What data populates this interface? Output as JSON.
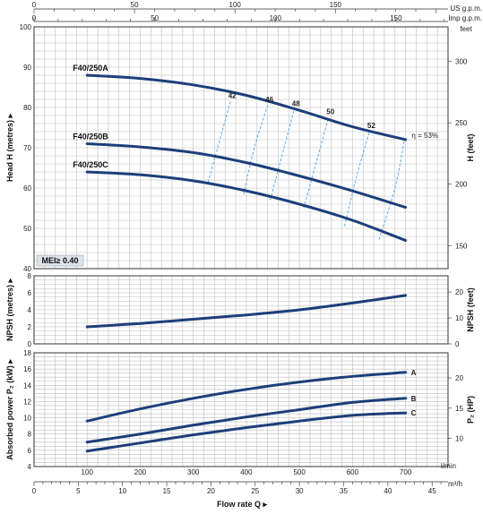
{
  "colors": {
    "curve": "#1c3f7a",
    "efficiency": "#5fa8df",
    "mei_box": "#dde3ea",
    "grid": "#bdbdbd"
  },
  "top_axes": {
    "us_label": "US g.p.m.",
    "us_ticks": [
      0,
      50,
      100,
      150
    ],
    "imp_label": "Imp g.p.m.",
    "imp_ticks": [
      0,
      50,
      100,
      150
    ]
  },
  "bottom_axes": {
    "lmin_label": "l/min",
    "lmin_ticks": [
      100,
      200,
      300,
      400,
      500,
      600,
      700
    ],
    "m3h_label": "m³/h",
    "m3h_ticks": [
      0,
      5,
      10,
      15,
      20,
      25,
      30,
      35,
      40,
      45
    ],
    "xlabel": "Flow rate Q"
  },
  "mei_label": "MEI≥ 0.40",
  "chart_data": [
    {
      "type": "line",
      "ylabel": "Head H (metres)",
      "ylabel_right": "H (feet)",
      "ylim": [
        40,
        100
      ],
      "y_ticks": [
        40,
        50,
        60,
        70,
        80,
        90,
        100
      ],
      "right_ticks": [
        150,
        200,
        250,
        300
      ],
      "right_unit_label": "feet",
      "xlim": [
        0,
        780
      ],
      "grid": true,
      "series": [
        {
          "name": "F40/250A",
          "x": [
            100,
            200,
            300,
            400,
            500,
            600,
            700
          ],
          "y": [
            88,
            87.2,
            85.6,
            83,
            79.3,
            75.2,
            72
          ]
        },
        {
          "name": "F40/250B",
          "x": [
            100,
            200,
            300,
            400,
            500,
            600,
            700
          ],
          "y": [
            71,
            70.2,
            68.8,
            66.3,
            63,
            59.3,
            55.2
          ]
        },
        {
          "name": "F40/250C",
          "x": [
            100,
            200,
            300,
            400,
            500,
            600,
            700
          ],
          "y": [
            64,
            63.3,
            61.8,
            59.3,
            56,
            52,
            47
          ]
        }
      ],
      "efficiency_labels": [
        "42",
        "46",
        "48",
        "50",
        "52",
        "η = 53%"
      ],
      "efficiency_curves": [
        {
          "label": "42",
          "x": [
            328,
            348,
            370
          ],
          "y": [
            61.5,
            71,
            81.5
          ]
        },
        {
          "label": "46",
          "x": [
            395,
            415,
            440
          ],
          "y": [
            58.5,
            70,
            80.5
          ]
        },
        {
          "label": "48",
          "x": [
            445,
            467,
            490
          ],
          "y": [
            57,
            68,
            79.5
          ]
        },
        {
          "label": "50",
          "x": [
            508,
            532,
            555
          ],
          "y": [
            55,
            66.5,
            77.5
          ]
        },
        {
          "label": "52",
          "x": [
            585,
            608,
            632
          ],
          "y": [
            50.5,
            63,
            74
          ]
        },
        {
          "label": "η = 53%",
          "x": [
            650,
            680,
            698
          ],
          "y": [
            47.2,
            60,
            72
          ]
        }
      ]
    },
    {
      "type": "line",
      "ylabel": "NPSH (metres)",
      "ylabel_right": "NPSH (feet)",
      "ylim": [
        0,
        8
      ],
      "y_ticks": [
        0,
        2,
        4,
        6,
        8
      ],
      "right_ticks": [
        0,
        10,
        20
      ],
      "xlim": [
        0,
        780
      ],
      "grid": true,
      "series": [
        {
          "x": [
            100,
            200,
            300,
            400,
            500,
            600,
            700
          ],
          "y": [
            2.0,
            2.4,
            2.9,
            3.4,
            4.0,
            4.8,
            5.7
          ]
        }
      ]
    },
    {
      "type": "line",
      "ylabel": "Absorbed power P₂ (kW)",
      "ylabel_right": "P₂ (HP)",
      "ylim": [
        4,
        18
      ],
      "y_ticks": [
        4,
        6,
        8,
        10,
        12,
        14,
        16,
        18
      ],
      "right_ticks": [
        10,
        15,
        20
      ],
      "xlim": [
        0,
        780
      ],
      "grid": true,
      "series": [
        {
          "name": "A",
          "x": [
            100,
            200,
            300,
            400,
            500,
            600,
            700
          ],
          "y": [
            9.6,
            11.1,
            12.4,
            13.5,
            14.4,
            15.1,
            15.6
          ]
        },
        {
          "name": "B",
          "x": [
            100,
            200,
            300,
            400,
            500,
            600,
            700
          ],
          "y": [
            7.0,
            8.0,
            9.1,
            10.1,
            11.0,
            11.9,
            12.4
          ]
        },
        {
          "name": "C",
          "x": [
            100,
            200,
            300,
            400,
            500,
            600,
            700
          ],
          "y": [
            5.9,
            6.9,
            7.9,
            8.8,
            9.6,
            10.3,
            10.6
          ]
        }
      ]
    }
  ]
}
